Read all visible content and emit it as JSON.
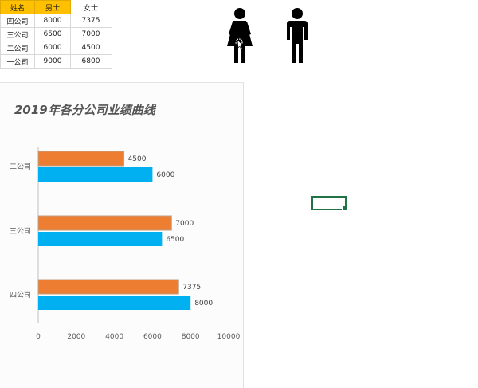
{
  "table": {
    "headers": [
      "姓名",
      "男士",
      "女士"
    ],
    "rows": [
      [
        "四公司",
        "8000",
        "7375"
      ],
      [
        "三公司",
        "6500",
        "7000"
      ],
      [
        "二公司",
        "6000",
        "4500"
      ],
      [
        "一公司",
        "9000",
        "6800"
      ]
    ]
  },
  "icons": {
    "female": "female-figure-icon",
    "male": "male-figure-icon"
  },
  "chart_data": {
    "type": "bar",
    "orientation": "horizontal",
    "title": "2019年各分公司业绩曲线",
    "categories": [
      "二公司",
      "三公司",
      "四公司"
    ],
    "series": [
      {
        "values": [
          4500,
          7000,
          7375
        ],
        "color": "#ed7d31"
      },
      {
        "values": [
          6000,
          6500,
          8000
        ],
        "color": "#00b0f0"
      }
    ],
    "xlim": [
      0,
      10000
    ],
    "xticks": [
      "0",
      "2000",
      "4000",
      "6000",
      "8000",
      "10000"
    ],
    "grid": false,
    "legend": "none"
  }
}
